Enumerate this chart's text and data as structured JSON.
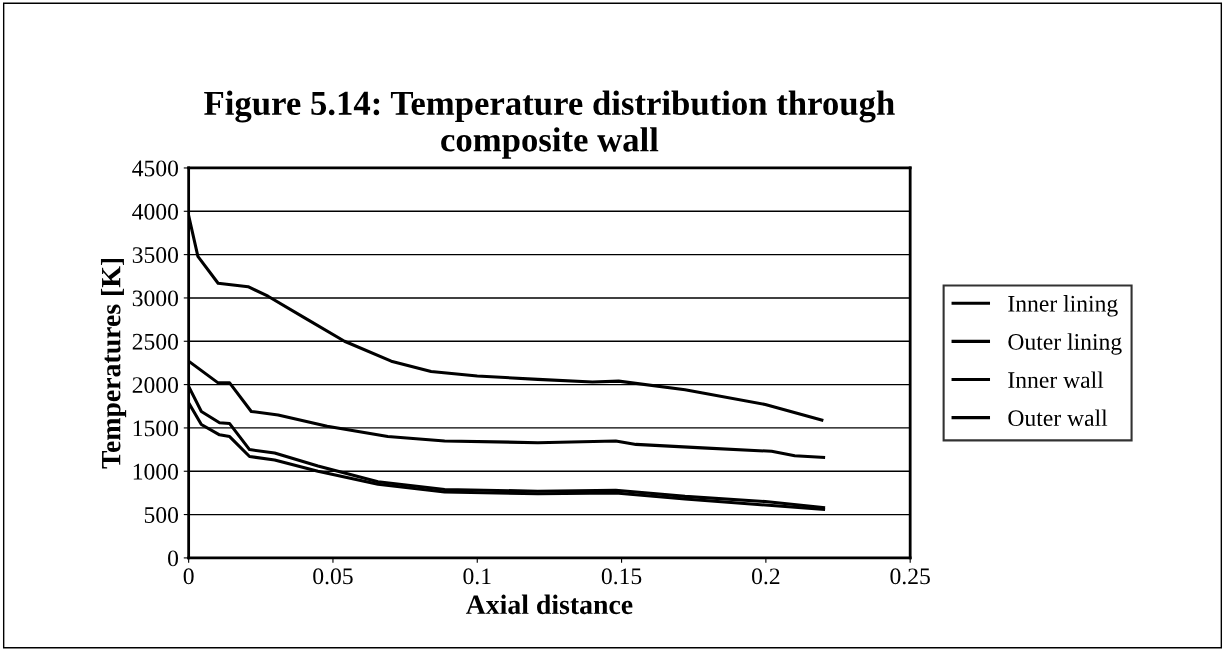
{
  "chart_data": {
    "type": "line",
    "title": "Figure 5.14: Temperature distribution through\ncomposite wall",
    "xlabel": "Axial distance",
    "ylabel": "Temperatures [K]",
    "xlim": [
      0,
      0.25
    ],
    "xticks": [
      0,
      0.05,
      0.1,
      0.15,
      0.2,
      0.25
    ],
    "ylim": [
      0,
      4500
    ],
    "yticks": [
      0,
      500,
      1000,
      1500,
      2000,
      2500,
      3000,
      3500,
      4000,
      4500
    ],
    "grid": "y",
    "legend": "right",
    "marker": "none",
    "line_style": "solid",
    "series": [
      {
        "name": "Inner lining",
        "color": "#000000",
        "x": [
          0,
          0.0032,
          0.0102,
          0.0206,
          0.0275,
          0.0402,
          0.054,
          0.0702,
          0.084,
          0.1,
          0.121,
          0.1399,
          0.149,
          0.172,
          0.1998,
          0.2194
        ],
        "values": [
          3950,
          3480,
          3170,
          3130,
          3020,
          2770,
          2500,
          2270,
          2150,
          2100,
          2060,
          2030,
          2040,
          1940,
          1770,
          1590
        ]
      },
      {
        "name": "Outer lining",
        "color": "#000000",
        "x": [
          0,
          0.0102,
          0.0142,
          0.0217,
          0.031,
          0.048,
          0.069,
          0.0887,
          0.121,
          0.148,
          0.155,
          0.178,
          0.202,
          0.21,
          0.22
        ],
        "values": [
          2270,
          2020,
          2020,
          1690,
          1650,
          1520,
          1400,
          1350,
          1330,
          1350,
          1310,
          1270,
          1230,
          1180,
          1160
        ]
      },
      {
        "name": "Inner wall",
        "color": "#000000",
        "x": [
          0,
          0.0044,
          0.0107,
          0.0142,
          0.0211,
          0.0298,
          0.0448,
          0.0656,
          0.0887,
          0.121,
          0.148,
          0.172,
          0.1998,
          0.22
        ],
        "values": [
          1980,
          1690,
          1560,
          1550,
          1250,
          1210,
          1060,
          880,
          790,
          770,
          780,
          710,
          650,
          580
        ]
      },
      {
        "name": "Outer wall",
        "color": "#000000",
        "x": [
          0,
          0.0044,
          0.0107,
          0.0142,
          0.0211,
          0.0298,
          0.0448,
          0.0656,
          0.0887,
          0.121,
          0.148,
          0.172,
          0.1998,
          0.22
        ],
        "values": [
          1790,
          1540,
          1420,
          1400,
          1170,
          1130,
          1000,
          850,
          760,
          740,
          750,
          680,
          610,
          560
        ]
      }
    ]
  }
}
